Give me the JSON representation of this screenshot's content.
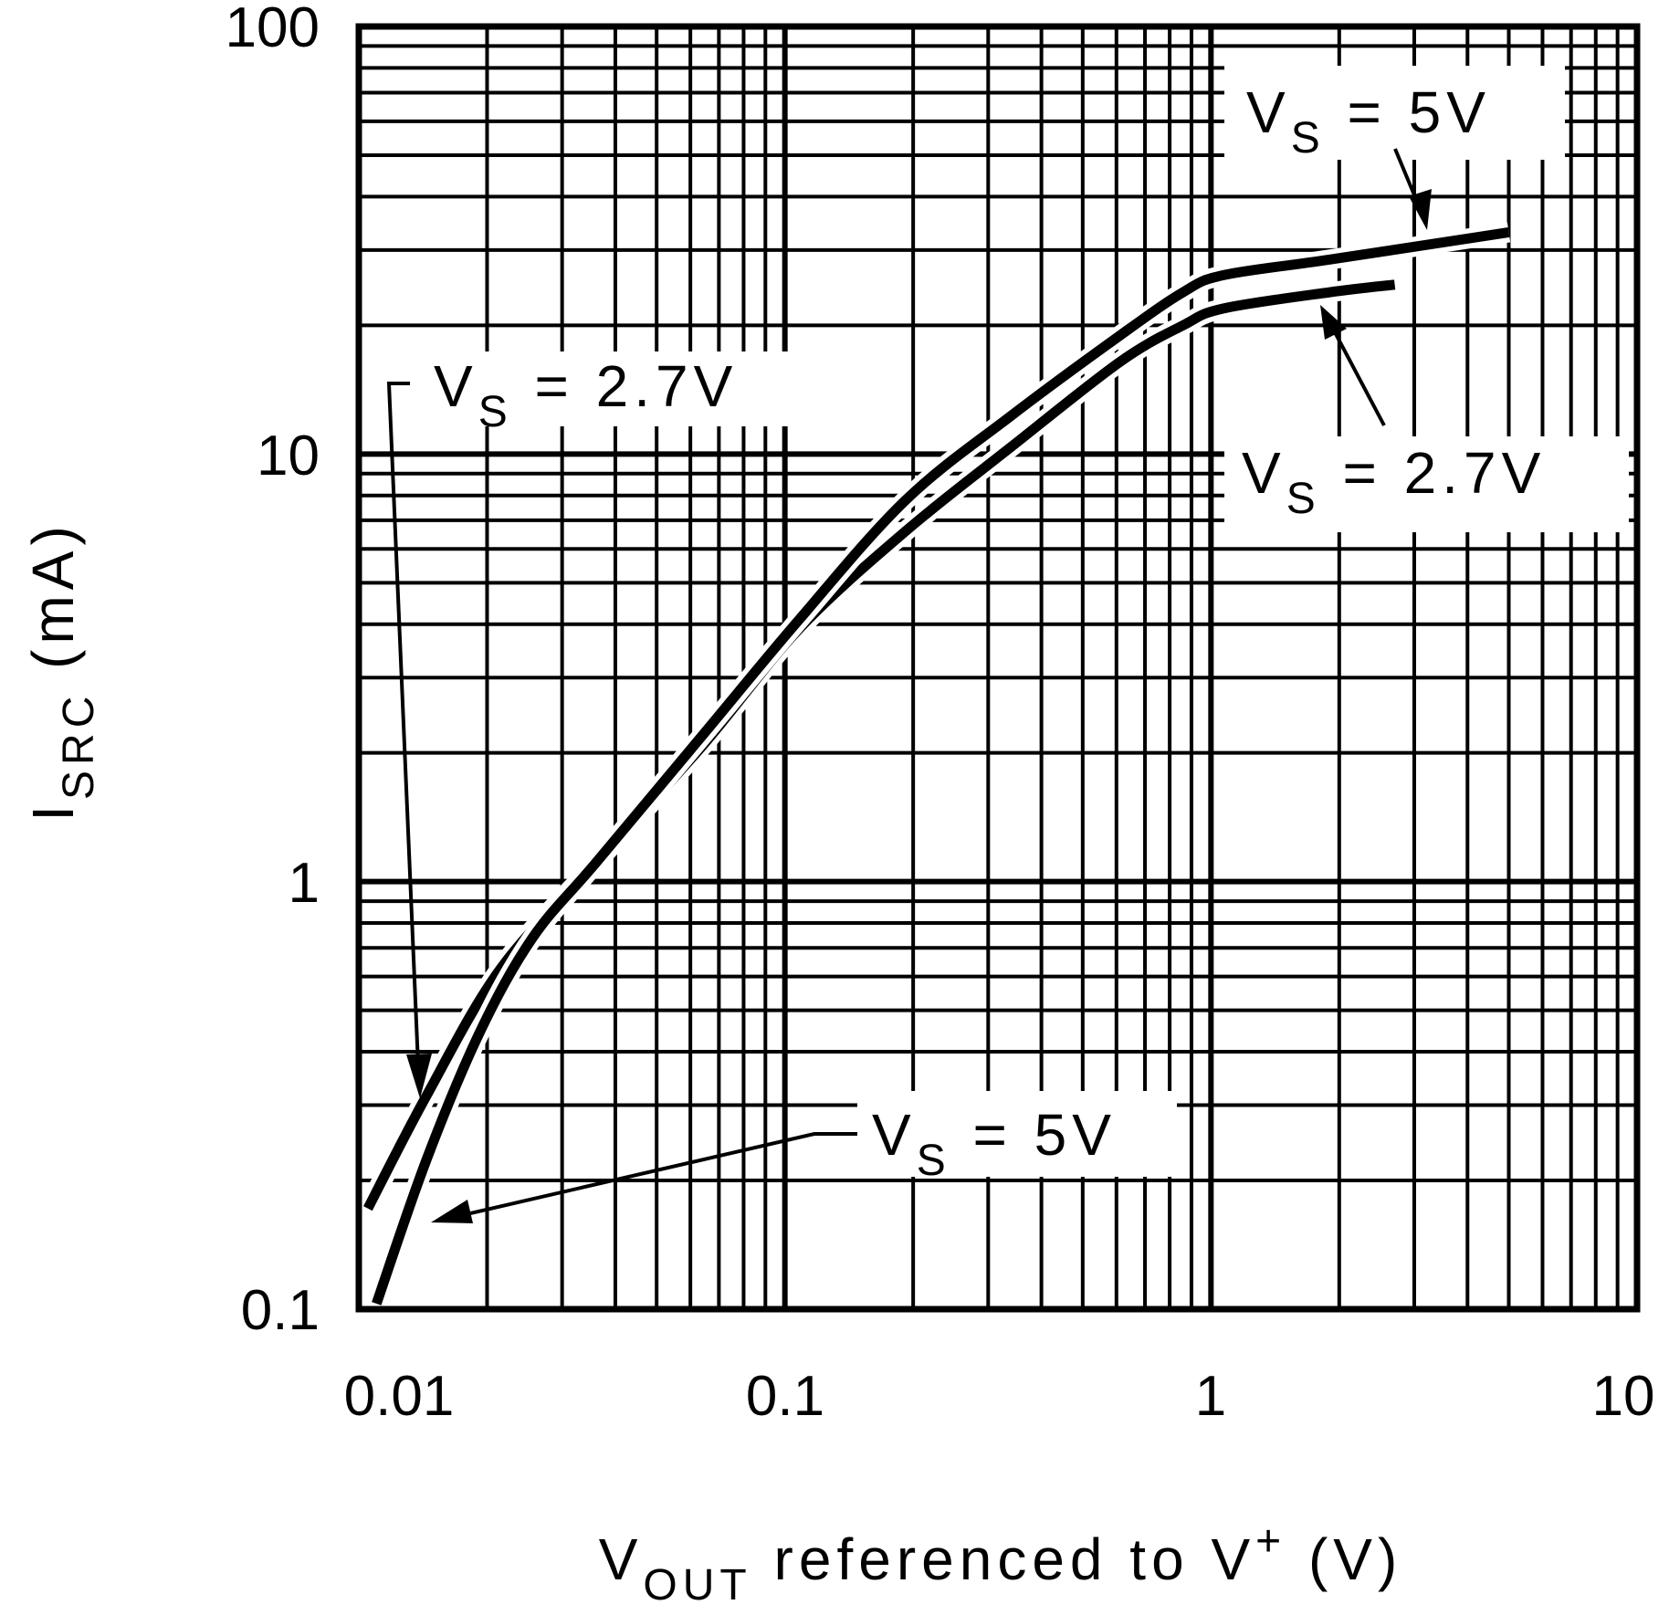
{
  "chart_data": {
    "type": "line",
    "xlabel": {
      "main": "V",
      "sub": "OUT",
      "rest": " referenced to V",
      "sup": "+",
      "unit": " (V)"
    },
    "ylabel": {
      "main": "I",
      "sub": "SRC",
      "unit": " (mA)"
    },
    "x_scale": "log",
    "y_scale": "log",
    "xlim": [
      0.01,
      10
    ],
    "ylim": [
      0.1,
      100
    ],
    "grid": true,
    "x_ticks": [
      "0.01",
      "0.1",
      "1",
      "10"
    ],
    "y_ticks": [
      "0.1",
      "1",
      "10",
      "100"
    ],
    "series": [
      {
        "name": "VS = 2.7V",
        "x": [
          0.0105,
          0.0144,
          0.0215,
          0.0361,
          0.0641,
          0.108,
          0.192,
          0.34,
          0.61,
          0.86,
          1.07,
          1.9,
          2.7
        ],
        "y": [
          0.172,
          0.315,
          0.625,
          1.11,
          2.08,
          3.9,
          6.6,
          10.4,
          16.4,
          20.0,
          21.9,
          23.9,
          24.9
        ]
      },
      {
        "name": "VS = 5V",
        "x": [
          0.011,
          0.0144,
          0.0192,
          0.0256,
          0.0361,
          0.0641,
          0.108,
          0.192,
          0.34,
          0.61,
          0.86,
          1.07,
          1.9,
          5.0
        ],
        "y": [
          0.103,
          0.223,
          0.443,
          0.74,
          1.11,
          2.2,
          4.1,
          7.8,
          12.3,
          18.9,
          23.9,
          26.2,
          28.5,
          33.0
        ]
      }
    ],
    "annotations": [
      {
        "main": "V",
        "sub": "S",
        "rest": " = 5V"
      },
      {
        "main": "V",
        "sub": "S",
        "rest": " = 2.7V"
      },
      {
        "main": "V",
        "sub": "S",
        "rest": " = 2.7V"
      },
      {
        "main": "V",
        "sub": "S",
        "rest": " = 5V"
      }
    ]
  }
}
